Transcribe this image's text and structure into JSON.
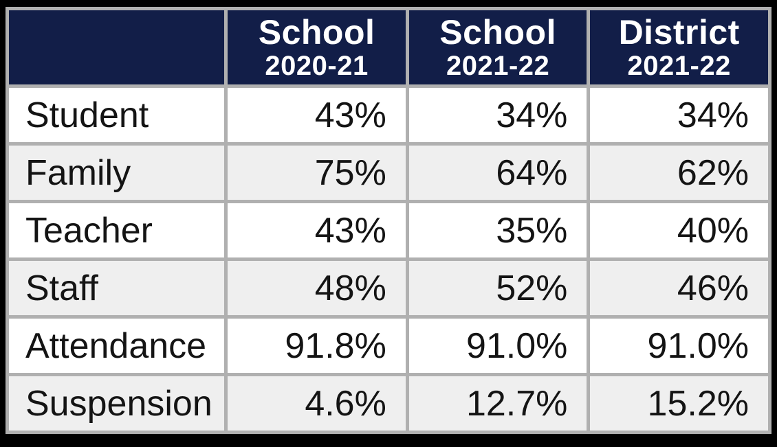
{
  "chart_data": {
    "type": "table",
    "column_headers": [
      {
        "main": "School",
        "sub": "2020-21"
      },
      {
        "main": "School",
        "sub": "2021-22"
      },
      {
        "main": "District",
        "sub": "2021-22"
      }
    ],
    "rows": [
      {
        "label": "Student",
        "values": [
          "43%",
          "34%",
          "34%"
        ]
      },
      {
        "label": "Family",
        "values": [
          "75%",
          "64%",
          "62%"
        ]
      },
      {
        "label": "Teacher",
        "values": [
          "43%",
          "35%",
          "40%"
        ]
      },
      {
        "label": "Staff",
        "values": [
          "48%",
          "52%",
          "46%"
        ]
      },
      {
        "label": "Attendance",
        "values": [
          "91.8%",
          "91.0%",
          "91.0%"
        ]
      },
      {
        "label": "Suspension",
        "values": [
          "4.6%",
          "12.7%",
          "15.2%"
        ]
      }
    ]
  },
  "colors": {
    "header_bg": "#121e48",
    "header_text": "#ffffff",
    "cell_border": "#b0b0b0",
    "row_bg": "#ffffff",
    "row_alt_bg": "#efefef",
    "frame_bg": "#000000",
    "body_text": "#141414"
  }
}
